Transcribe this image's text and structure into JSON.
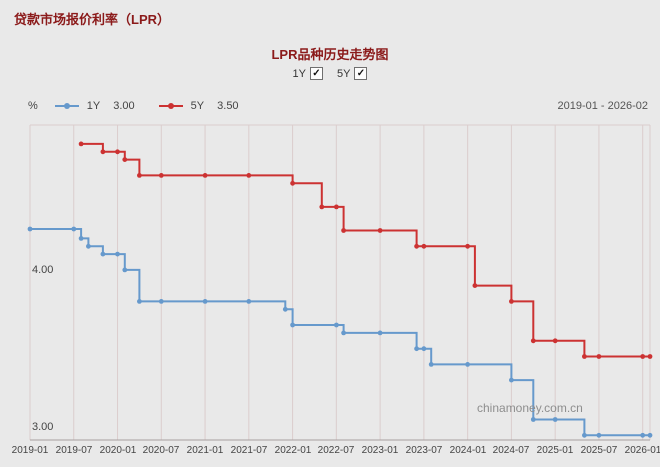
{
  "page": {
    "header_title": "贷款市场报价利率（LPR）",
    "chart_title": "LPR品种历史走势图",
    "percent_label": "%",
    "date_range": "2019-01 - 2026-02",
    "watermark": "chinamoney.com.cn"
  },
  "controls": {
    "toggles": [
      {
        "label": "1Y",
        "checked": true
      },
      {
        "label": "5Y",
        "checked": true
      }
    ]
  },
  "legend": [
    {
      "name": "1Y",
      "value": "3.00",
      "color": "#6699cc"
    },
    {
      "name": "5Y",
      "value": "3.50",
      "color": "#cc3232"
    }
  ],
  "chart_data": {
    "type": "line",
    "title": "LPR品种历史走势图",
    "ylabel": "%",
    "x_start": "2019-01",
    "x_end": "2026-02",
    "ylim": [
      2.97,
      4.97
    ],
    "grid": "vertical",
    "legend_position": "top",
    "grid_color": "#dbcdcd",
    "axis_color": "#a8a0a0",
    "x_ticks": [
      "2019-01",
      "2019-07",
      "2020-01",
      "2020-07",
      "2021-01",
      "2021-07",
      "2022-01",
      "2022-07",
      "2023-01",
      "2023-07",
      "2024-01",
      "2024-07",
      "2025-01",
      "2025-07",
      "2026-01"
    ],
    "y_ticks": [
      {
        "label": "4.00",
        "value": 4.0
      },
      {
        "label": "3.00",
        "value": 3.0
      }
    ],
    "series": [
      {
        "name": "1Y",
        "color": "#6699cc",
        "current": "3.00",
        "step_points": [
          [
            "2019-01",
            4.31
          ],
          [
            "2019-08",
            4.25
          ],
          [
            "2019-09",
            4.2
          ],
          [
            "2019-11",
            4.15
          ],
          [
            "2020-02",
            4.05
          ],
          [
            "2020-04",
            3.85
          ],
          [
            "2021-12",
            3.8
          ],
          [
            "2022-01",
            3.7
          ],
          [
            "2022-08",
            3.65
          ],
          [
            "2023-06",
            3.55
          ],
          [
            "2023-08",
            3.45
          ],
          [
            "2024-07",
            3.35
          ],
          [
            "2024-10",
            3.1
          ],
          [
            "2025-05",
            3.0
          ],
          [
            "2026-02",
            3.0
          ]
        ]
      },
      {
        "name": "5Y",
        "color": "#cc3232",
        "current": "3.50",
        "step_points": [
          [
            "2019-08",
            4.85
          ],
          [
            "2019-11",
            4.8
          ],
          [
            "2020-02",
            4.75
          ],
          [
            "2020-04",
            4.65
          ],
          [
            "2022-01",
            4.6
          ],
          [
            "2022-05",
            4.45
          ],
          [
            "2022-08",
            4.3
          ],
          [
            "2023-06",
            4.2
          ],
          [
            "2024-02",
            3.95
          ],
          [
            "2024-07",
            3.85
          ],
          [
            "2024-10",
            3.6
          ],
          [
            "2025-05",
            3.5
          ],
          [
            "2026-02",
            3.5
          ]
        ]
      }
    ]
  }
}
